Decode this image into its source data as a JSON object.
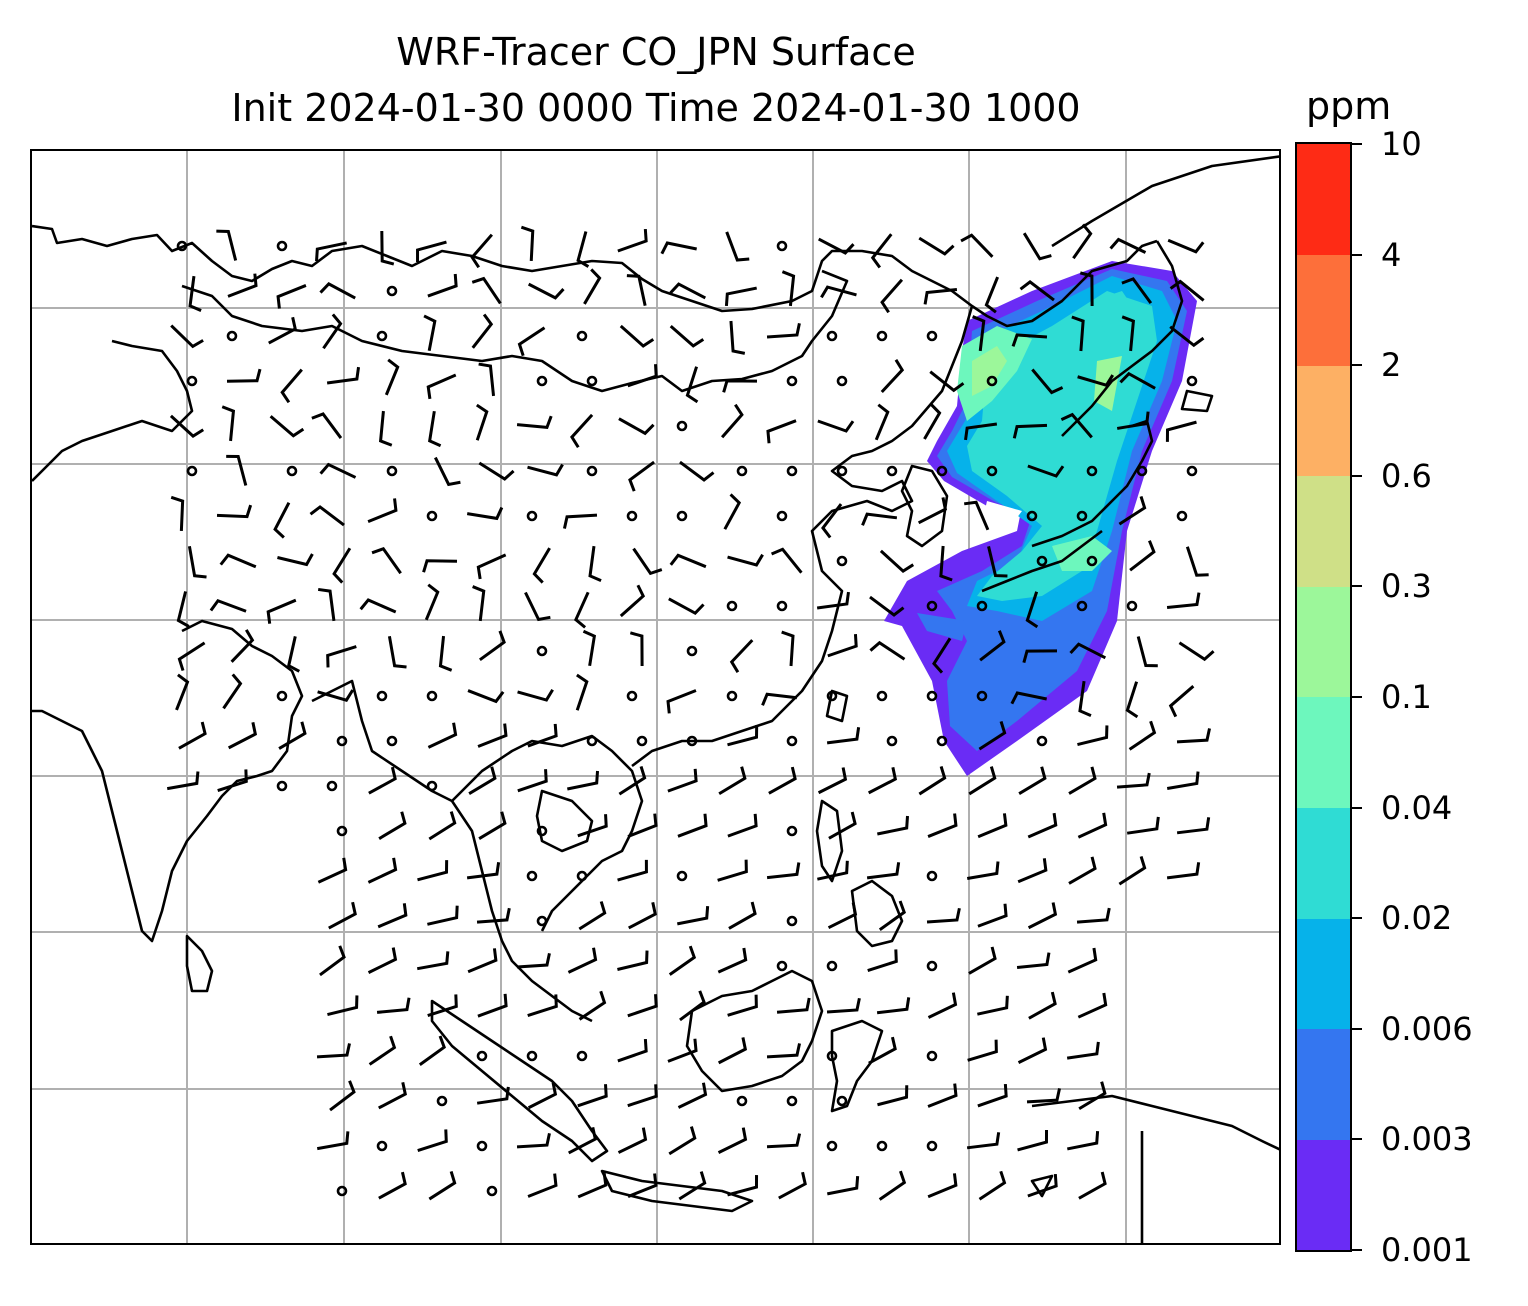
{
  "title": {
    "line1": "WRF-Tracer CO_JPN Surface",
    "line2": "Init 2024-01-30 0000 Time 2024-01-30 1000"
  },
  "colorbar": {
    "unit": "ppm",
    "levels": [
      "0.001",
      "0.003",
      "0.006",
      "0.02",
      "0.04",
      "0.1",
      "0.3",
      "0.6",
      "2",
      "4",
      "10"
    ],
    "colors": [
      "#6a2cf5",
      "#3476f0",
      "#06b2ea",
      "#2fdcd4",
      "#6df7bd",
      "#9cf79a",
      "#cfe087",
      "#fdb064",
      "#fd6f3a",
      "#fe2b15"
    ]
  },
  "map": {
    "gridlines": true,
    "background": "#ffffff",
    "coastline_color": "#000000"
  }
}
